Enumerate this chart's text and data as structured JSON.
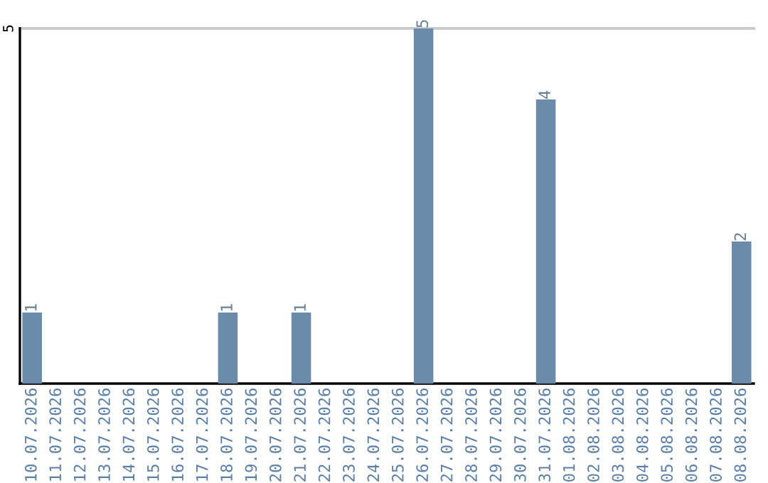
{
  "chart_data": {
    "type": "bar",
    "categories": [
      "10.07.2026",
      "11.07.2026",
      "12.07.2026",
      "13.07.2026",
      "14.07.2026",
      "15.07.2026",
      "16.07.2026",
      "17.07.2026",
      "18.07.2026",
      "19.07.2026",
      "20.07.2026",
      "21.07.2026",
      "22.07.2026",
      "23.07.2026",
      "24.07.2026",
      "25.07.2026",
      "26.07.2026",
      "27.07.2026",
      "28.07.2026",
      "29.07.2026",
      "30.07.2026",
      "31.07.2026",
      "01.08.2026",
      "02.08.2026",
      "03.08.2026",
      "04.08.2026",
      "05.08.2026",
      "06.08.2026",
      "07.08.2026",
      "08.08.2026"
    ],
    "values": [
      1,
      0,
      0,
      0,
      0,
      0,
      0,
      0,
      1,
      0,
      0,
      1,
      0,
      0,
      0,
      0,
      5,
      0,
      0,
      0,
      0,
      4,
      0,
      0,
      0,
      0,
      0,
      0,
      0,
      2
    ],
    "value_labels": [
      "1",
      null,
      null,
      null,
      null,
      null,
      null,
      null,
      "1",
      null,
      null,
      "1",
      null,
      null,
      null,
      null,
      "5",
      null,
      null,
      null,
      null,
      "4",
      null,
      null,
      null,
      null,
      null,
      null,
      null,
      "2"
    ],
    "color": "#6a8caa",
    "ylim": [
      0,
      5
    ],
    "yticks": [
      5
    ],
    "ref_lines": [
      {
        "axis": "y",
        "value": 5,
        "color": "#cccccc"
      }
    ]
  }
}
